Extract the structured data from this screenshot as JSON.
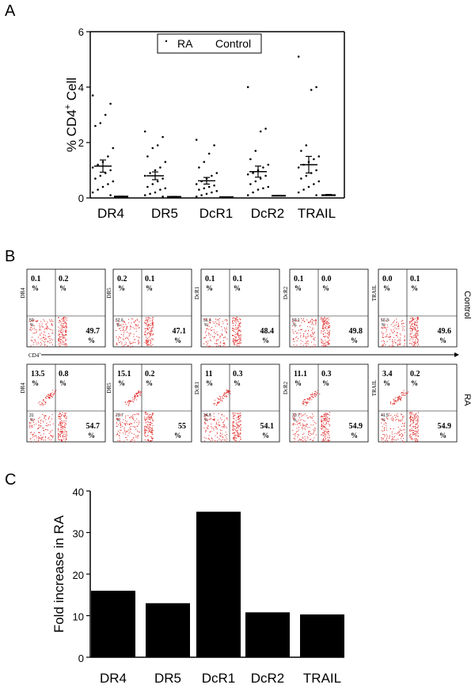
{
  "panels": {
    "a": "A",
    "b": "B",
    "c": "C"
  },
  "chart_data": [
    {
      "type": "scatter",
      "panel": "A",
      "ylabel": "% CD4+ Cell",
      "ylabel_main": "% CD4",
      "ylabel_sup": "+",
      "ylabel_tail": " Cell",
      "ylim": [
        0,
        6
      ],
      "yticks": [
        "0",
        "2",
        "4",
        "6"
      ],
      "categories": [
        "DR4",
        "DR5",
        "DcR1",
        "DcR2",
        "TRAIL"
      ],
      "legend": {
        "ra": "RA",
        "control": "Control",
        "placement": "top"
      },
      "series": [
        {
          "name": "RA",
          "points": [
            [
              3.7,
              3.4,
              3.0,
              2.7,
              2.6,
              1.8,
              1.5,
              1.3,
              1.2,
              1.1,
              1.0,
              0.9,
              0.8,
              0.7,
              0.6,
              0.5,
              0.4,
              0.3,
              0.2,
              0.1
            ],
            [
              2.4,
              2.2,
              1.9,
              1.8,
              1.5,
              1.3,
              1.1,
              1.0,
              0.9,
              0.8,
              0.7,
              0.6,
              0.5,
              0.4,
              0.35,
              0.3,
              0.2,
              0.15,
              0.1,
              0.05
            ],
            [
              2.1,
              1.9,
              1.6,
              1.3,
              1.1,
              0.9,
              0.8,
              0.7,
              0.6,
              0.5,
              0.45,
              0.4,
              0.35,
              0.3,
              0.25,
              0.2,
              0.15,
              0.1,
              0.05
            ],
            [
              4.0,
              2.5,
              2.4,
              1.7,
              1.4,
              1.2,
              1.1,
              1.0,
              0.9,
              0.85,
              0.8,
              0.7,
              0.6,
              0.5,
              0.4,
              0.35,
              0.3,
              0.2,
              0.1
            ],
            [
              5.1,
              4.0,
              3.9,
              1.9,
              1.7,
              1.5,
              1.4,
              1.3,
              1.2,
              1.1,
              1.0,
              0.9,
              0.8,
              0.7,
              0.6,
              0.5,
              0.4,
              0.3,
              0.2,
              0.1
            ]
          ],
          "mean": [
            1.15,
            0.8,
            0.62,
            0.95,
            1.2
          ],
          "sem": [
            0.22,
            0.14,
            0.12,
            0.2,
            0.3
          ]
        },
        {
          "name": "Control",
          "mean": [
            0.05,
            0.04,
            0.03,
            0.08,
            0.1
          ],
          "sem": [
            0.02,
            0.02,
            0.01,
            0.02,
            0.03
          ]
        }
      ]
    },
    {
      "type": "bar",
      "panel": "C",
      "ylabel": "Fold increase in RA",
      "ylim": [
        0,
        40
      ],
      "yticks": [
        "0",
        "10",
        "20",
        "30",
        "40"
      ],
      "categories": [
        "DR4",
        "DR5",
        "DcR1",
        "DcR2",
        "TRAIL"
      ],
      "values": [
        16,
        13,
        35,
        10.8,
        10.3
      ]
    }
  ],
  "flow": {
    "x_axis_label": "CD4",
    "x_axis_sup": "+",
    "row_labels": [
      "Control",
      "RA"
    ],
    "rows": [
      [
        {
          "ylabel": "DR4",
          "ul": "0.1",
          "ur": "0.2",
          "ll": "50",
          "lr": "49.7"
        },
        {
          "ylabel": "DR5",
          "ul": "0.2",
          "ur": "0.1",
          "ll": "52.6",
          "lr": "47.1"
        },
        {
          "ylabel": "DcR1",
          "ul": "0.1",
          "ur": "0.1",
          "ll": "51.4",
          "lr": "48.4"
        },
        {
          "ylabel": "DcR2",
          "ul": "0.1",
          "ur": "0.0",
          "ll": "50.1",
          "lr": "49.8"
        },
        {
          "ylabel": "TRAIL",
          "ul": "0.0",
          "ur": "0.1",
          "ll": "50.3",
          "lr": "49.6"
        }
      ],
      [
        {
          "ylabel": "DR4",
          "ul": "13.5",
          "ur": "0.8",
          "ll": "31",
          "lr": "54.7"
        },
        {
          "ylabel": "DR5",
          "ul": "15.1",
          "ur": "0.2",
          "ll": "29.7",
          "lr": "55"
        },
        {
          "ylabel": "DcR1",
          "ul": "11",
          "ur": "0.3",
          "ll": "34.6",
          "lr": "54.1"
        },
        {
          "ylabel": "DcR2",
          "ul": "11.1",
          "ur": "0.3",
          "ll": "33.7",
          "lr": "54.9"
        },
        {
          "ylabel": "TRAIL",
          "ul": "3.4",
          "ur": "0.2",
          "ll": "41.5",
          "lr": "54.9"
        }
      ]
    ],
    "pct": "%",
    "dot_color": "#dd2222"
  }
}
